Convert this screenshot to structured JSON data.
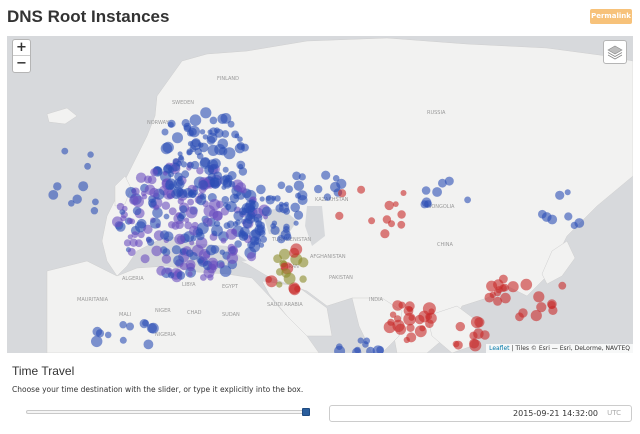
{
  "header": {
    "title": "DNS Root Instances",
    "permalink_label": "Permalink"
  },
  "colors": {
    "accent": "#f7c27a",
    "land": "#f2f2f1",
    "water": "#d7d9dc",
    "instance_blue": "#2c4fb6",
    "instance_red": "#c82a2a",
    "instance_purple": "#6a4fc0",
    "instance_olive": "#8a8a2a"
  },
  "map": {
    "zoom_in": "+",
    "zoom_out": "−",
    "layers_icon": "layers-icon",
    "attribution": {
      "link": "Leaflet",
      "text": "| Tiles © Esri — Esri, DeLorme, NAVTEQ"
    },
    "labels": [
      "SWEDEN",
      "FINLAND",
      "RUSSIA",
      "NORWAY",
      "KAZAKHSTAN",
      "MONGOLIA",
      "CHINA",
      "AFGHANISTAN",
      "TURKMENISTAN",
      "LIBYA",
      "EGYPT",
      "ALGERIA",
      "MALI",
      "NIGER",
      "CHAD",
      "SUDAN",
      "NIGERIA",
      "INDIA",
      "PAKISTAN",
      "IRAN",
      "SAUDI ARABIA",
      "MAURITANIA"
    ]
  },
  "time_travel": {
    "title": "Time Travel",
    "description": "Choose your time destination with the slider, or type it explicitly into the box.",
    "slider_value": 1.0,
    "datetime": "2015-09-21 14:32:00",
    "timezone": "UTC"
  }
}
